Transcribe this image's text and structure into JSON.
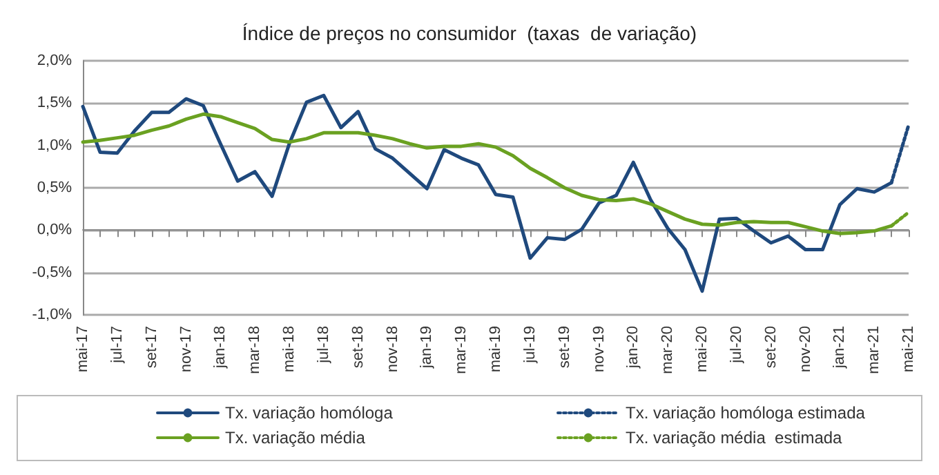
{
  "chart_data": {
    "type": "line",
    "title": "Índice de preços no consumidor  (taxas  de variação)",
    "categories": [
      "mai-17",
      null,
      "jul-17",
      null,
      "set-17",
      null,
      "nov-17",
      null,
      "jan-18",
      null,
      "mar-18",
      null,
      "mai-18",
      null,
      "jul-18",
      null,
      "set-18",
      null,
      "nov-18",
      null,
      "jan-19",
      null,
      "mar-19",
      null,
      "mai-19",
      null,
      "jul-19",
      null,
      "set-19",
      null,
      "nov-19",
      null,
      "jan-20",
      null,
      "mar-20",
      null,
      "mai-20",
      null,
      "jul-20",
      null,
      "set-20",
      null,
      "nov-20",
      null,
      "jan-21",
      null,
      "mar-21",
      null,
      "mai-21"
    ],
    "series": [
      {
        "name": "Tx. variação homóloga",
        "color": "#1f497d",
        "line_style": "solid",
        "values": [
          1.46,
          0.92,
          0.91,
          1.17,
          1.39,
          1.39,
          1.55,
          1.47,
          1.02,
          0.58,
          0.69,
          0.4,
          1.02,
          1.51,
          1.59,
          1.21,
          1.4,
          0.96,
          0.85,
          0.67,
          0.49,
          0.95,
          0.85,
          0.77,
          0.42,
          0.39,
          -0.33,
          -0.09,
          -0.11,
          0.01,
          0.32,
          0.41,
          0.8,
          0.36,
          0.02,
          -0.23,
          -0.72,
          0.13,
          0.14,
          -0.01,
          -0.15,
          -0.07,
          -0.23,
          -0.23,
          0.3,
          0.49,
          0.45,
          0.56,
          null
        ]
      },
      {
        "name": "Tx. variação homóloga estimada",
        "color": "#1f497d",
        "line_style": "dotted",
        "values": [
          null,
          null,
          null,
          null,
          null,
          null,
          null,
          null,
          null,
          null,
          null,
          null,
          null,
          null,
          null,
          null,
          null,
          null,
          null,
          null,
          null,
          null,
          null,
          null,
          null,
          null,
          null,
          null,
          null,
          null,
          null,
          null,
          null,
          null,
          null,
          null,
          null,
          null,
          null,
          null,
          null,
          null,
          null,
          null,
          null,
          null,
          null,
          0.56,
          1.24
        ]
      },
      {
        "name": "Tx. variação média",
        "color": "#6aa121",
        "line_style": "solid",
        "values": [
          1.04,
          1.06,
          1.09,
          1.12,
          1.18,
          1.23,
          1.31,
          1.37,
          1.34,
          1.27,
          1.2,
          1.07,
          1.04,
          1.08,
          1.15,
          1.15,
          1.15,
          1.12,
          1.08,
          1.02,
          0.97,
          0.99,
          0.99,
          1.02,
          0.98,
          0.88,
          0.73,
          0.62,
          0.5,
          0.41,
          0.36,
          0.35,
          0.37,
          0.31,
          0.22,
          0.13,
          0.07,
          0.06,
          0.09,
          0.1,
          0.09,
          0.09,
          0.04,
          -0.01,
          -0.04,
          -0.03,
          -0.01,
          0.05,
          null
        ]
      },
      {
        "name": "Tx. variação média  estimada",
        "color": "#6aa121",
        "line_style": "dotted",
        "values": [
          null,
          null,
          null,
          null,
          null,
          null,
          null,
          null,
          null,
          null,
          null,
          null,
          null,
          null,
          null,
          null,
          null,
          null,
          null,
          null,
          null,
          null,
          null,
          null,
          null,
          null,
          null,
          null,
          null,
          null,
          null,
          null,
          null,
          null,
          null,
          null,
          null,
          null,
          null,
          null,
          null,
          null,
          null,
          null,
          null,
          null,
          null,
          0.05,
          0.21
        ]
      }
    ],
    "ylim": [
      -1,
      2
    ],
    "yticks": [
      {
        "value": -1,
        "label": "-1,0%"
      },
      {
        "value": -0.5,
        "label": "-0,5%"
      },
      {
        "value": 0,
        "label": "0,0%"
      },
      {
        "value": 0.5,
        "label": "0,5%"
      },
      {
        "value": 1,
        "label": "1,0%"
      },
      {
        "value": 1.5,
        "label": "1,5%"
      },
      {
        "value": 2,
        "label": "2,0%"
      }
    ],
    "grid": "y",
    "legend": "bottom",
    "marker": "none"
  }
}
